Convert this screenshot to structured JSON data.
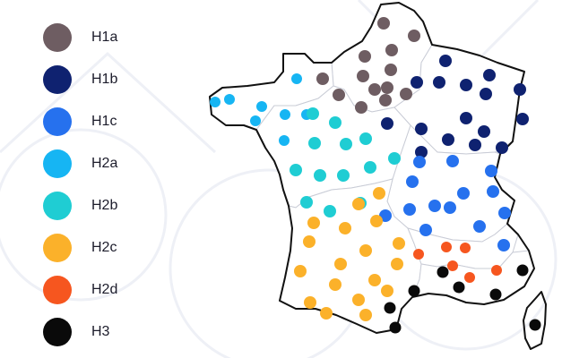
{
  "legend": [
    {
      "label": "H1a",
      "color": "#6e5d62"
    },
    {
      "label": "H1b",
      "color": "#0f2270"
    },
    {
      "label": "H1c",
      "color": "#2671ee"
    },
    {
      "label": "H2a",
      "color": "#16b5f3"
    },
    {
      "label": "H2b",
      "color": "#1fcdd3"
    },
    {
      "label": "H2c",
      "color": "#fbb12a"
    },
    {
      "label": "H2d",
      "color": "#f6561f"
    },
    {
      "label": "H3",
      "color": "#0a0a0a"
    }
  ],
  "map": {
    "country": "France",
    "islands": [
      "Corsica"
    ]
  }
}
